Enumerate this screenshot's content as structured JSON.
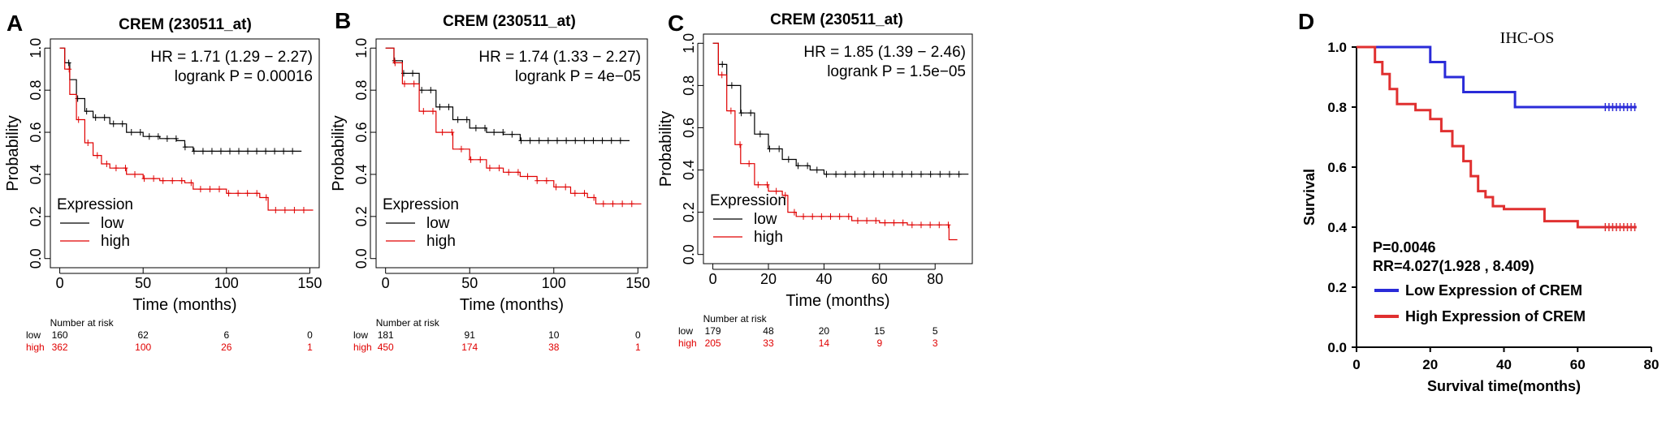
{
  "colors": {
    "low_km": "#000000",
    "high_km": "#e00000",
    "low_d": "#2a2bd8",
    "high_d": "#e03030"
  },
  "chart_data": [
    {
      "panel": "A",
      "type": "line",
      "title": "CREM (230511_at)",
      "xlabel": "Time (months)",
      "ylabel": "Probability",
      "xlim": [
        0,
        150
      ],
      "ylim": [
        0,
        1
      ],
      "x_ticks": [
        0,
        50,
        100,
        150
      ],
      "y_ticks": [
        0.0,
        0.2,
        0.4,
        0.6,
        0.8,
        1.0
      ],
      "hr_text": "HR = 1.71 (1.29 − 2.27)",
      "logrank_text": "logrank P = 0.00016",
      "legend_title": "Expression",
      "series": [
        {
          "name": "low",
          "x": [
            0,
            3,
            6,
            10,
            15,
            20,
            30,
            40,
            50,
            60,
            70,
            75,
            80,
            145
          ],
          "y": [
            1.0,
            0.93,
            0.85,
            0.76,
            0.7,
            0.67,
            0.64,
            0.6,
            0.58,
            0.57,
            0.56,
            0.53,
            0.51,
            0.51
          ]
        },
        {
          "name": "high",
          "x": [
            0,
            3,
            6,
            10,
            15,
            20,
            25,
            30,
            40,
            50,
            60,
            75,
            80,
            100,
            110,
            120,
            125,
            152
          ],
          "y": [
            1.0,
            0.9,
            0.78,
            0.66,
            0.55,
            0.49,
            0.45,
            0.43,
            0.4,
            0.38,
            0.37,
            0.36,
            0.33,
            0.31,
            0.31,
            0.29,
            0.23,
            0.23
          ]
        }
      ],
      "risk_table": {
        "header": "Number at risk",
        "times": [
          "0",
          "50",
          "100",
          "150"
        ],
        "low": [
          "160",
          "62",
          "6",
          "0"
        ],
        "high": [
          "362",
          "100",
          "26",
          "1"
        ]
      }
    },
    {
      "panel": "B",
      "type": "line",
      "title": "CREM (230511_at)",
      "xlabel": "Time (months)",
      "ylabel": "Probability",
      "xlim": [
        0,
        150
      ],
      "ylim": [
        0,
        1
      ],
      "x_ticks": [
        0,
        50,
        100,
        150
      ],
      "y_ticks": [
        0.0,
        0.2,
        0.4,
        0.6,
        0.8,
        1.0
      ],
      "hr_text": "HR = 1.74 (1.33 − 2.27)",
      "logrank_text": "logrank P = 4e−05",
      "legend_title": "Expression",
      "series": [
        {
          "name": "low",
          "x": [
            0,
            5,
            10,
            20,
            30,
            40,
            50,
            60,
            70,
            80,
            145
          ],
          "y": [
            1.0,
            0.94,
            0.88,
            0.8,
            0.72,
            0.66,
            0.62,
            0.6,
            0.59,
            0.56,
            0.56
          ]
        },
        {
          "name": "high",
          "x": [
            0,
            5,
            10,
            20,
            30,
            40,
            50,
            60,
            70,
            80,
            90,
            100,
            110,
            120,
            125,
            152
          ],
          "y": [
            1.0,
            0.93,
            0.83,
            0.7,
            0.6,
            0.52,
            0.47,
            0.43,
            0.41,
            0.39,
            0.37,
            0.34,
            0.31,
            0.29,
            0.26,
            0.26
          ]
        }
      ],
      "risk_table": {
        "header": "Number at risk",
        "times": [
          "0",
          "50",
          "100",
          "150"
        ],
        "low": [
          "181",
          "91",
          "10",
          "0"
        ],
        "high": [
          "450",
          "174",
          "38",
          "1"
        ]
      }
    },
    {
      "panel": "C",
      "type": "line",
      "title": "CREM (230511_at)",
      "xlabel": "Time (months)",
      "ylabel": "Probability",
      "xlim": [
        0,
        90
      ],
      "ylim": [
        0,
        1
      ],
      "x_ticks": [
        0,
        20,
        40,
        60,
        80
      ],
      "y_ticks": [
        0.0,
        0.2,
        0.4,
        0.6,
        0.8,
        1.0
      ],
      "hr_text": "HR = 1.85 (1.39 − 2.46)",
      "logrank_text": "logrank P = 1.5e−05",
      "legend_title": "Expression",
      "series": [
        {
          "name": "low",
          "x": [
            0,
            2,
            5,
            10,
            15,
            20,
            25,
            30,
            35,
            40,
            92
          ],
          "y": [
            1.0,
            0.9,
            0.8,
            0.67,
            0.57,
            0.5,
            0.45,
            0.42,
            0.4,
            0.38,
            0.38
          ]
        },
        {
          "name": "high",
          "x": [
            0,
            2,
            5,
            8,
            10,
            15,
            20,
            25,
            27,
            30,
            40,
            50,
            60,
            70,
            85,
            88
          ],
          "y": [
            1.0,
            0.85,
            0.68,
            0.52,
            0.43,
            0.33,
            0.3,
            0.28,
            0.2,
            0.18,
            0.18,
            0.16,
            0.15,
            0.14,
            0.07,
            0.07
          ]
        }
      ],
      "risk_table": {
        "header": "Number at risk",
        "times": [
          "0",
          "20",
          "40",
          "60",
          "80"
        ],
        "low": [
          "179",
          "48",
          "20",
          "15",
          "5"
        ],
        "high": [
          "205",
          "33",
          "14",
          "9",
          "3"
        ]
      }
    },
    {
      "panel": "D",
      "type": "line",
      "title": "IHC-OS",
      "xlabel": "Survival time(months)",
      "ylabel": "Survival",
      "xlim": [
        0,
        80
      ],
      "ylim": [
        0,
        1
      ],
      "x_ticks": [
        0,
        20,
        40,
        60,
        80
      ],
      "y_ticks": [
        0.0,
        0.2,
        0.4,
        0.6,
        0.8,
        1.0
      ],
      "p_text": "P=0.0046",
      "rr_text": "RR=4.027(1.928 , 8.409)",
      "series": [
        {
          "name": "Low Expression of CREM",
          "x": [
            0,
            20,
            20,
            24,
            24,
            29,
            29,
            43,
            43,
            76
          ],
          "y": [
            1.0,
            1.0,
            0.95,
            0.95,
            0.9,
            0.9,
            0.85,
            0.85,
            0.8,
            0.8
          ]
        },
        {
          "name": "High Expression of CREM",
          "x": [
            0,
            5,
            5,
            7,
            7,
            9,
            9,
            11,
            11,
            16,
            16,
            20,
            20,
            23,
            23,
            26,
            26,
            29,
            29,
            31,
            31,
            33,
            33,
            35,
            35,
            37,
            37,
            40,
            40,
            51,
            51,
            60,
            60,
            76
          ],
          "y": [
            1.0,
            1.0,
            0.95,
            0.95,
            0.91,
            0.91,
            0.86,
            0.86,
            0.81,
            0.81,
            0.79,
            0.79,
            0.76,
            0.76,
            0.72,
            0.72,
            0.67,
            0.67,
            0.62,
            0.62,
            0.57,
            0.57,
            0.52,
            0.52,
            0.5,
            0.5,
            0.47,
            0.47,
            0.46,
            0.46,
            0.42,
            0.42,
            0.4,
            0.4
          ]
        }
      ]
    }
  ]
}
